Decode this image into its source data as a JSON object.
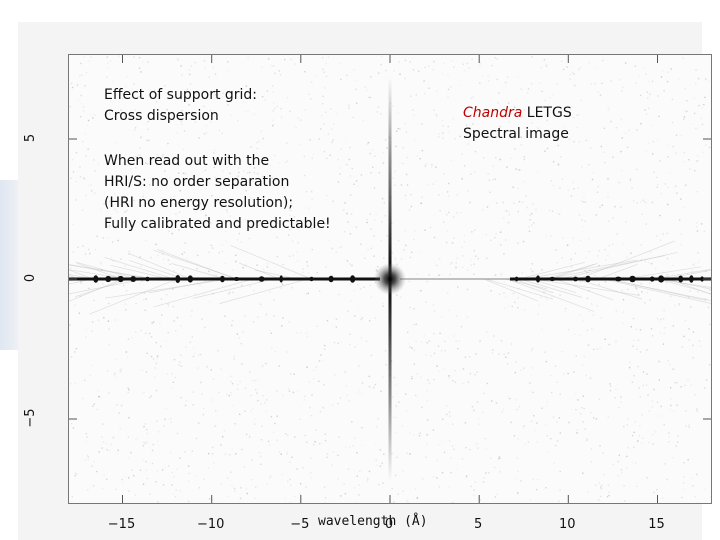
{
  "annotations": {
    "support_grid_title": "Effect of support grid:",
    "support_grid_sub": "Cross dispersion",
    "readout_lines": [
      "When read out with the",
      "HRI/S: no order separation",
      "(HRI no energy resolution);",
      "Fully calibrated and predictable!"
    ],
    "instrument_red": "Chandra",
    "instrument_black": " LETGS",
    "image_label": "Spectral image"
  },
  "chart_data": {
    "type": "heatmap",
    "xlabel": "wavelength (Å)",
    "ylabel": "",
    "xlim": [
      -18,
      18
    ],
    "ylim": [
      -8,
      8
    ],
    "x_ticks": [
      -15,
      -10,
      -5,
      0,
      5,
      10,
      15
    ],
    "x_tick_labels": [
      "−15",
      "−10",
      "−5",
      "0",
      "5",
      "10",
      "15"
    ],
    "y_ticks": [
      5,
      0,
      -5
    ],
    "y_tick_labels": [
      "5",
      "0",
      "−5"
    ],
    "colormap": "inverted grayscale",
    "features": {
      "zero_order_x": 0,
      "zero_order_y": 0,
      "dispersion_axis_y": 0,
      "cross_dispersion_axis_x": 0
    }
  }
}
